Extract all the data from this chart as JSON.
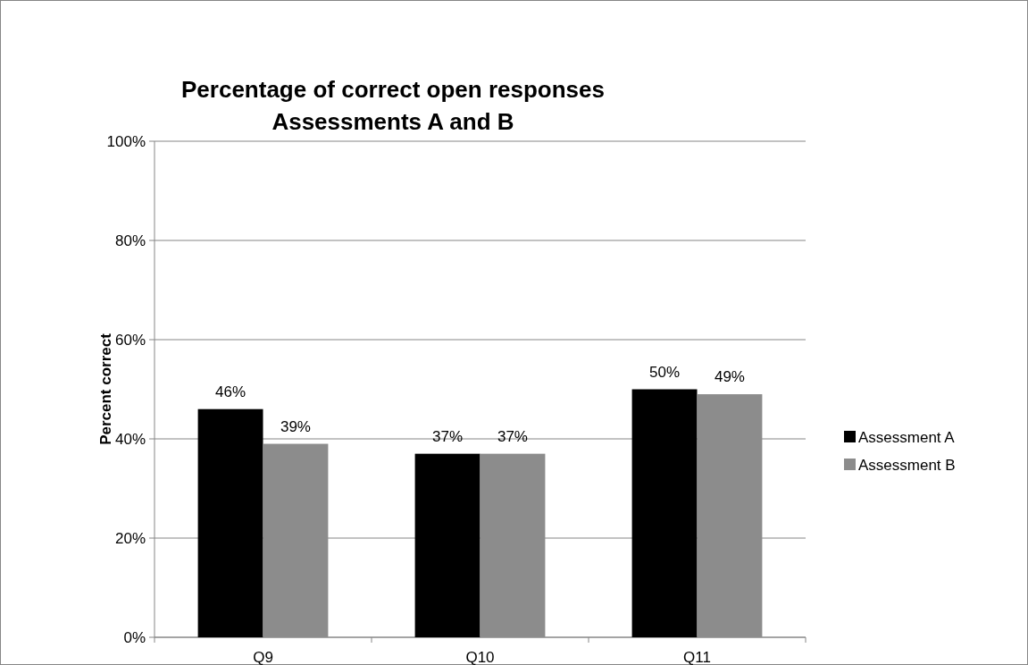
{
  "chart_data": {
    "type": "bar",
    "title": "Percentage of correct open responses\nAssessments A and B",
    "ylabel": "Percent correct",
    "categories": [
      "Q9",
      "Q10",
      "Q11"
    ],
    "series": [
      {
        "name": "Assessment A",
        "color": "#000000",
        "values": [
          46,
          37,
          50
        ],
        "value_labels": [
          "46%",
          "37%",
          "50%"
        ]
      },
      {
        "name": "Assessment B",
        "color": "#8c8c8c",
        "values": [
          39,
          37,
          49
        ],
        "value_labels": [
          "39%",
          "37%",
          "49%"
        ]
      }
    ],
    "ylim": [
      0,
      100
    ],
    "yticks": [
      {
        "value": 0,
        "label": "0%"
      },
      {
        "value": 20,
        "label": "20%"
      },
      {
        "value": 40,
        "label": "40%"
      },
      {
        "value": 60,
        "label": "60%"
      },
      {
        "value": 80,
        "label": "80%"
      },
      {
        "value": 100,
        "label": "100%"
      }
    ],
    "grid": "y",
    "legend": "right"
  }
}
